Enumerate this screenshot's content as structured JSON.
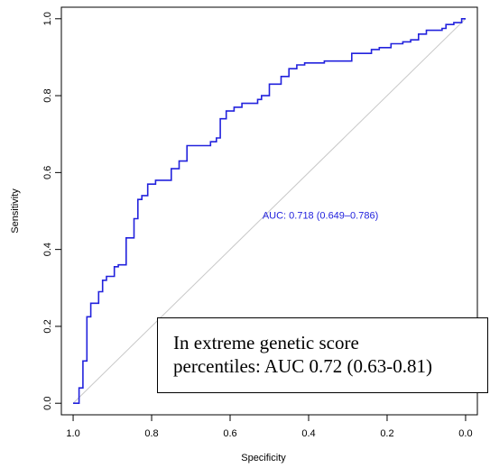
{
  "chart_data": {
    "type": "line",
    "xlabel": "Specificity",
    "ylabel": "Sensitivity",
    "xlim": [
      1.03,
      -0.03
    ],
    "ylim": [
      -0.03,
      1.03
    ],
    "xticks": [
      1.0,
      0.8,
      0.6,
      0.4,
      0.2,
      0.0
    ],
    "yticks": [
      0.0,
      0.2,
      0.4,
      0.6,
      0.8,
      1.0
    ],
    "x_tick_labels": [
      "1.0",
      "0.8",
      "0.6",
      "0.4",
      "0.2",
      "0.0"
    ],
    "y_tick_labels": [
      "0.0",
      "0.2",
      "0.4",
      "0.6",
      "0.8",
      "1.0"
    ],
    "grid": false,
    "reference_line": {
      "from": [
        1.0,
        0.0
      ],
      "to": [
        0.0,
        1.0
      ],
      "color": "#c8c8c8"
    },
    "series": [
      {
        "color": "#2222dd",
        "x": [
          1.0,
          0.985,
          0.985,
          0.975,
          0.975,
          0.965,
          0.965,
          0.955,
          0.955,
          0.935,
          0.935,
          0.925,
          0.925,
          0.915,
          0.915,
          0.895,
          0.895,
          0.885,
          0.885,
          0.865,
          0.865,
          0.845,
          0.845,
          0.835,
          0.835,
          0.825,
          0.825,
          0.81,
          0.81,
          0.79,
          0.79,
          0.75,
          0.75,
          0.73,
          0.73,
          0.71,
          0.71,
          0.65,
          0.65,
          0.635,
          0.635,
          0.625,
          0.625,
          0.61,
          0.61,
          0.59,
          0.59,
          0.57,
          0.57,
          0.53,
          0.53,
          0.52,
          0.52,
          0.5,
          0.5,
          0.47,
          0.47,
          0.45,
          0.45,
          0.43,
          0.43,
          0.41,
          0.41,
          0.36,
          0.36,
          0.29,
          0.29,
          0.24,
          0.24,
          0.22,
          0.22,
          0.19,
          0.19,
          0.16,
          0.16,
          0.14,
          0.14,
          0.12,
          0.12,
          0.1,
          0.1,
          0.06,
          0.06,
          0.05,
          0.05,
          0.03,
          0.03,
          0.01,
          0.01,
          0.0
        ],
        "y": [
          0.0,
          0.0,
          0.04,
          0.04,
          0.11,
          0.11,
          0.225,
          0.225,
          0.26,
          0.26,
          0.29,
          0.29,
          0.32,
          0.32,
          0.33,
          0.33,
          0.355,
          0.355,
          0.36,
          0.36,
          0.43,
          0.43,
          0.48,
          0.48,
          0.53,
          0.53,
          0.54,
          0.54,
          0.57,
          0.57,
          0.58,
          0.58,
          0.61,
          0.61,
          0.63,
          0.63,
          0.67,
          0.67,
          0.68,
          0.68,
          0.69,
          0.69,
          0.74,
          0.74,
          0.76,
          0.76,
          0.77,
          0.77,
          0.78,
          0.78,
          0.79,
          0.79,
          0.8,
          0.8,
          0.83,
          0.83,
          0.85,
          0.85,
          0.87,
          0.87,
          0.88,
          0.88,
          0.885,
          0.885,
          0.89,
          0.89,
          0.91,
          0.91,
          0.92,
          0.92,
          0.925,
          0.925,
          0.935,
          0.935,
          0.94,
          0.94,
          0.945,
          0.945,
          0.96,
          0.96,
          0.97,
          0.97,
          0.975,
          0.975,
          0.985,
          0.985,
          0.99,
          0.99,
          1.0,
          1.0
        ]
      }
    ],
    "auc_annotation": {
      "text": "AUC: 0.718 (0.649–0.786)",
      "x": 0.37,
      "y": 0.48,
      "color": "#2222dd"
    }
  },
  "callout": {
    "line1": "In extreme genetic score",
    "line2": "percentiles: AUC 0.72 (0.63-0.81)"
  }
}
